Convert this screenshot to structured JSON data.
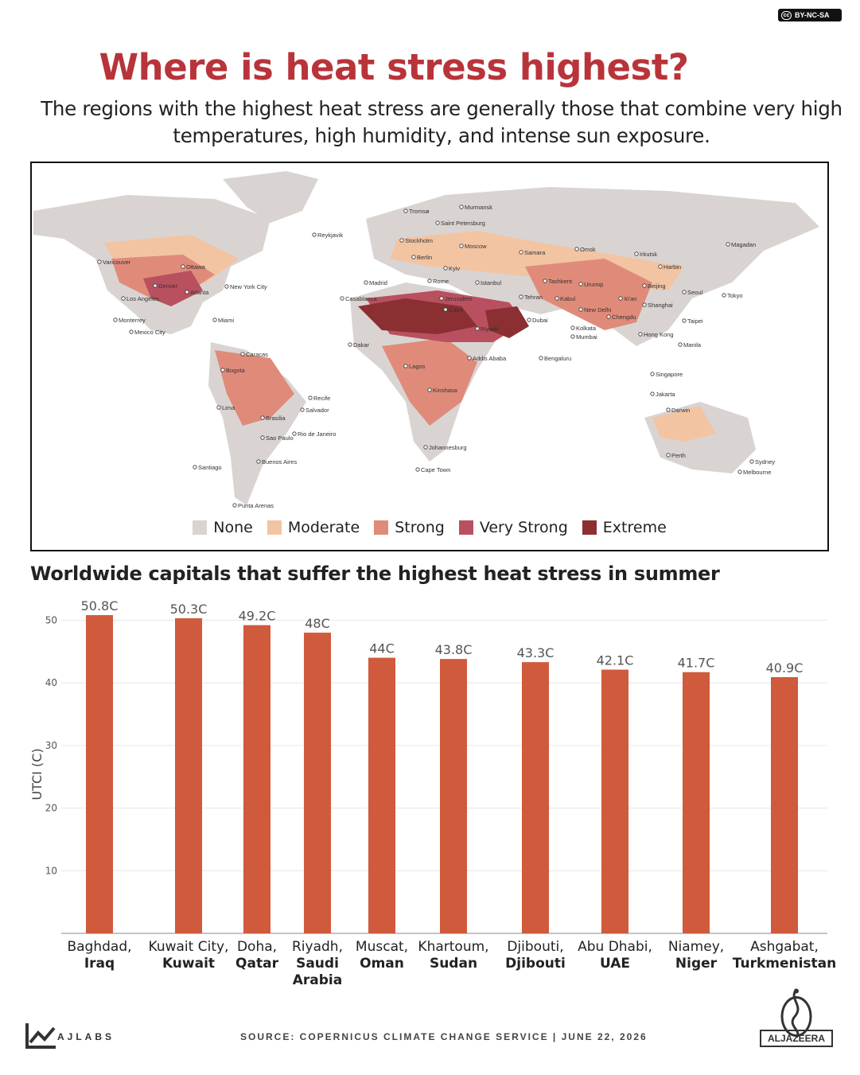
{
  "license": "BY-NC-SA",
  "title": "Where is heat stress highest?",
  "subtitle": "The regions with the highest heat stress are generally those that combine very high temperatures, high humidity, and intense sun exposure.",
  "colors": {
    "title": "#b8343a",
    "bar": "#cf5a3c",
    "none": "#d9d4d2",
    "moderate": "#f3c4a2",
    "strong": "#e08b7a",
    "very_strong": "#b9505f",
    "extreme": "#8b2f33"
  },
  "map": {
    "legend": [
      "None",
      "Moderate",
      "Strong",
      "Very Strong",
      "Extreme"
    ],
    "cities": [
      "Tromsø",
      "Murmansk",
      "Saint Petersburg",
      "Reykjavik",
      "Stockholm",
      "Moscow",
      "Samara",
      "Omsk",
      "Magadan",
      "Vancouver",
      "Berlin",
      "Irkutsk",
      "Ottawa",
      "Kyiv",
      "Harbin",
      "New York City",
      "Madrid",
      "Rome",
      "Istanbul",
      "Tashkent",
      "Urumqi",
      "Beijing",
      "Seoul",
      "Tokyo",
      "Denver",
      "Atlanta",
      "Casablanca",
      "Jerusalem",
      "Tehran",
      "Kabul",
      "Xi'an",
      "Shanghai",
      "Los Angeles",
      "Cairo",
      "New Delhi",
      "Chengdu",
      "Taipei",
      "Miami",
      "Monterrey",
      "Riyadh",
      "Dubai",
      "Kolkata",
      "Mumbai",
      "Hong Kong",
      "Mexico City",
      "Dakar",
      "Manila",
      "Caracas",
      "Addis Ababa",
      "Bengaluru",
      "Bogota",
      "Lagos",
      "Singapore",
      "Kinshasa",
      "Jakarta",
      "Recife",
      "Lima",
      "Salvador",
      "Darwin",
      "Brasilia",
      "Sao Paulo",
      "Rio de Janeiro",
      "Johannesburg",
      "Perth",
      "Sydney",
      "Santiago",
      "Buenos Aires",
      "Cape Town",
      "Melbourne",
      "Punta Arenas"
    ]
  },
  "chart_title": "Worldwide capitals that suffer the highest heat stress in summer",
  "chart_data": {
    "type": "bar",
    "categories": [
      [
        "Baghdad,",
        "Iraq"
      ],
      [
        "Kuwait City,",
        "Kuwait"
      ],
      [
        "Doha,",
        "Qatar"
      ],
      [
        "Riyadh,",
        "Saudi",
        "Arabia"
      ],
      [
        "Muscat,",
        "Oman"
      ],
      [
        "Khartoum,",
        "Sudan"
      ],
      [
        "Djibouti,",
        "Djibouti"
      ],
      [
        "Abu Dhabi,",
        "UAE"
      ],
      [
        "Niamey,",
        "Niger"
      ],
      [
        "Ashgabat,",
        "Turkmenistan"
      ]
    ],
    "values": [
      50.8,
      50.3,
      49.2,
      48,
      44,
      43.8,
      43.3,
      42.1,
      41.7,
      40.9
    ],
    "data_labels": [
      "50.8C",
      "50.3C",
      "49.2C",
      "48C",
      "44C",
      "43.8C",
      "43.3C",
      "42.1C",
      "41.7C",
      "40.9C"
    ],
    "ylabel": "UTCI (C)",
    "yticks": [
      10,
      20,
      30,
      40,
      50
    ],
    "ylim": [
      0,
      55
    ],
    "grid": true
  },
  "footer": {
    "brand": "AJLABS",
    "source": "SOURCE:  COPERNICUS CLIMATE CHANGE SERVICE   |   JUNE 22, 2026",
    "logo_text": "ALJAZEERA"
  }
}
